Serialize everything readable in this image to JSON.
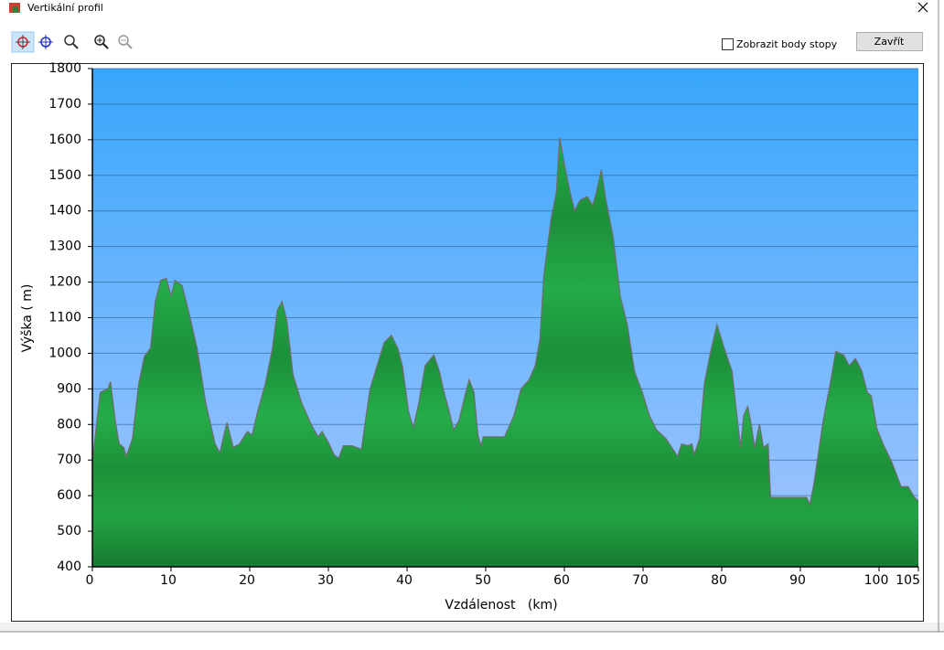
{
  "window": {
    "title": "Vertikální profil",
    "checkbox_label": "Zobrazit body stopy",
    "close_button": "Zavřít"
  },
  "chart_data": {
    "type": "area",
    "xlabel": "Vzdálenost   (km)",
    "ylabel": "Výška ( m)",
    "xlim": [
      0,
      105
    ],
    "ylim": [
      400,
      1800
    ],
    "xticks": [
      0,
      10,
      20,
      30,
      40,
      50,
      60,
      70,
      80,
      90,
      100,
      105
    ],
    "yticks": [
      400,
      500,
      600,
      700,
      800,
      900,
      1000,
      1100,
      1200,
      1300,
      1400,
      1500,
      1600,
      1700,
      1800
    ],
    "grid": true,
    "x": [
      0,
      1.0,
      2.0,
      2.3,
      2.9,
      3.4,
      4.0,
      4.3,
      5.1,
      5.9,
      6.6,
      7.4,
      8.0,
      8.7,
      9.4,
      10.0,
      10.5,
      11.4,
      12.2,
      13.3,
      14.4,
      15.6,
      16.2,
      17.1,
      17.9,
      18.7,
      19.7,
      20.3,
      21.0,
      22.0,
      22.9,
      23.5,
      24.1,
      24.7,
      25.5,
      26.6,
      27.8,
      28.7,
      29.2,
      30.1,
      30.7,
      31.3,
      31.9,
      33.0,
      34.2,
      35.3,
      36.2,
      37.1,
      38.0,
      38.8,
      39.4,
      40.2,
      40.8,
      41.5,
      42.3,
      43.4,
      44.1,
      44.7,
      45.2,
      45.9,
      46.6,
      47.3,
      47.9,
      48.5,
      49.0,
      49.4,
      49.7,
      52.4,
      53.6,
      54.5,
      55.5,
      56.3,
      56.9,
      57.4,
      58.3,
      59.0,
      59.4,
      60.0,
      60.7,
      61.3,
      62.0,
      62.9,
      63.6,
      64.1,
      64.7,
      65.2,
      66.2,
      67.1,
      68.0,
      68.9,
      69.9,
      70.8,
      71.7,
      72.9,
      73.8,
      74.4,
      74.9,
      75.7,
      76.2,
      76.5,
      77.2,
      77.8,
      78.6,
      79.4,
      80.3,
      81.3,
      82.0,
      82.4,
      82.8,
      83.3,
      83.7,
      84.2,
      84.8,
      85.3,
      85.9,
      86.2,
      90.8,
      91.2,
      91.7,
      92.9,
      93.8,
      94.5,
      95.5,
      96.2,
      97.0,
      97.8,
      98.5,
      99.0,
      99.7,
      100.5,
      101.6,
      102.8,
      103.7,
      104.5,
      105.0
    ],
    "series": [
      {
        "color": "#1f9e40",
        "values": [
          695,
          890,
          900,
          920,
          810,
          745,
          735,
          710,
          760,
          915,
          990,
          1015,
          1145,
          1205,
          1210,
          1160,
          1205,
          1190,
          1120,
          1015,
          860,
          745,
          720,
          805,
          735,
          745,
          780,
          770,
          835,
          915,
          1015,
          1120,
          1145,
          1095,
          940,
          860,
          800,
          765,
          780,
          745,
          715,
          705,
          740,
          740,
          730,
          900,
          965,
          1030,
          1050,
          1015,
          965,
          835,
          790,
          860,
          965,
          995,
          950,
          890,
          850,
          785,
          810,
          875,
          925,
          890,
          770,
          740,
          765,
          765,
          825,
          900,
          925,
          965,
          1040,
          1220,
          1375,
          1455,
          1605,
          1530,
          1455,
          1400,
          1430,
          1440,
          1415,
          1455,
          1515,
          1440,
          1325,
          1160,
          1080,
          950,
          890,
          825,
          785,
          760,
          730,
          710,
          745,
          740,
          745,
          715,
          760,
          915,
          1005,
          1080,
          1015,
          950,
          810,
          735,
          825,
          850,
          805,
          735,
          800,
          735,
          745,
          595,
          595,
          575,
          630,
          810,
          915,
          1005,
          995,
          965,
          985,
          950,
          890,
          880,
          790,
          745,
          695,
          625,
          625,
          595,
          585
        ]
      }
    ]
  }
}
